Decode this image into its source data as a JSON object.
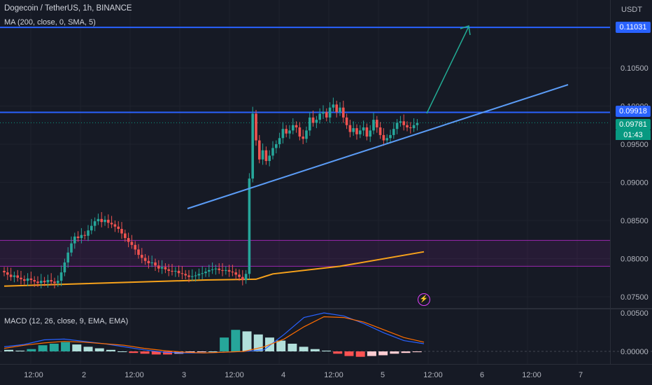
{
  "legend": {
    "title": "Dogecoin / TetherUS, 1h, BINANCE",
    "ma": "MA (200, close, 0, SMA, 5)",
    "macd": "MACD (12, 26, close, 9, EMA, EMA)"
  },
  "axis": {
    "unit": "USDT",
    "price_ticks": [
      "0.10500",
      "0.10000",
      "0.09500",
      "0.09000",
      "0.08500",
      "0.08000",
      "0.07500"
    ],
    "macd_ticks": [
      "0.00500",
      "0.00000"
    ],
    "time_ticks": [
      "12:00",
      "2",
      "12:00",
      "3",
      "12:00",
      "4",
      "12:00",
      "5",
      "12:00",
      "6",
      "12:00",
      "7"
    ]
  },
  "tags": {
    "target": "0.11031",
    "resistance": "0.09918",
    "last": "0.09781",
    "countdown": "01:43"
  },
  "icons": {
    "alert": "lightning-icon"
  },
  "colors": {
    "bg": "#161a25",
    "up": "#26a69a",
    "down": "#ef5350",
    "ma": "#f7a21b",
    "level": "#2962ff",
    "trend": "#5b9cf6",
    "arrow": "#22ab94",
    "zone": "#9c27b0",
    "macd": "#2962ff",
    "signal": "#ff6d00"
  },
  "chart_data": {
    "type": "line",
    "symbol": "Dogecoin / TetherUS",
    "interval": "1h",
    "exchange": "BINANCE",
    "price_range": [
      0.074,
      0.111
    ],
    "closes": [
      0.0782,
      0.0779,
      0.0776,
      0.0778,
      0.0775,
      0.0773,
      0.0771,
      0.0774,
      0.0772,
      0.077,
      0.0768,
      0.0771,
      0.0769,
      0.0772,
      0.077,
      0.0768,
      0.0771,
      0.0782,
      0.0795,
      0.0808,
      0.082,
      0.0829,
      0.0827,
      0.0831,
      0.083,
      0.0837,
      0.0843,
      0.0849,
      0.0852,
      0.0848,
      0.0851,
      0.0847,
      0.0845,
      0.0842,
      0.0839,
      0.0833,
      0.0827,
      0.0822,
      0.0818,
      0.0812,
      0.0805,
      0.0801,
      0.0797,
      0.0794,
      0.0795,
      0.0791,
      0.0787,
      0.0789,
      0.0786,
      0.0784,
      0.0783,
      0.0784,
      0.0781,
      0.078,
      0.0778,
      0.0776,
      0.0777,
      0.0778,
      0.078,
      0.0781,
      0.0783,
      0.0785,
      0.0786,
      0.0787,
      0.0785,
      0.0784,
      0.0785,
      0.0783,
      0.0782,
      0.0779,
      0.0776,
      0.0772,
      0.078,
      0.0905,
      0.099,
      0.0955,
      0.093,
      0.0942,
      0.0928,
      0.0935,
      0.0945,
      0.095,
      0.0958,
      0.097,
      0.0964,
      0.0968,
      0.0975,
      0.0972,
      0.096,
      0.0957,
      0.0968,
      0.0985,
      0.0978,
      0.0982,
      0.099,
      0.0992,
      0.0985,
      0.0998,
      0.1002,
      0.0992,
      0.0998,
      0.0985,
      0.0975,
      0.0966,
      0.0971,
      0.0963,
      0.0968,
      0.0972,
      0.096,
      0.0968,
      0.0982,
      0.0972,
      0.0962,
      0.0955,
      0.0958,
      0.0962,
      0.097,
      0.0978,
      0.098,
      0.0975,
      0.0972,
      0.0971,
      0.0975,
      0.0978
    ],
    "ma200_points": [
      [
        0,
        0.0764
      ],
      [
        60,
        0.0772
      ],
      [
        75,
        0.0773
      ],
      [
        80,
        0.078
      ],
      [
        100,
        0.079
      ],
      [
        125,
        0.0809
      ]
    ],
    "levels": {
      "target": 0.11031,
      "resistance": 0.09918,
      "last": 0.09781
    },
    "zone": [
      0.079,
      0.0824
    ],
    "macd": {
      "range": [
        -0.0015,
        0.0055
      ],
      "histogram": [
        0.0002,
        0.0001,
        0.0003,
        0.0008,
        0.001,
        0.0012,
        0.0009,
        0.0006,
        0.0004,
        0.0002,
        0.0,
        -0.0002,
        -0.0003,
        -0.0004,
        -0.0004,
        -0.0003,
        -0.0002,
        -0.0001,
        0.0,
        0.0018,
        0.0028,
        0.0026,
        0.0022,
        0.0018,
        0.0014,
        0.001,
        0.0006,
        0.0003,
        0.0001,
        -0.0003,
        -0.0006,
        -0.0007,
        -0.0006,
        -0.0005,
        -0.0003,
        -0.0002,
        -0.0001
      ],
      "macd_line": [
        0.0006,
        0.0009,
        0.0015,
        0.0016,
        0.0013,
        0.001,
        0.0006,
        0.0002,
        -0.0001,
        -0.0002,
        -0.0002,
        -0.0001,
        0.0,
        0.0002,
        0.0022,
        0.0044,
        0.005,
        0.0046,
        0.0036,
        0.0024,
        0.0014,
        0.001
      ],
      "signal_line": [
        0.0004,
        0.0008,
        0.0011,
        0.0013,
        0.0012,
        0.001,
        0.0008,
        0.0004,
        0.0001,
        -0.0001,
        -0.0002,
        -0.0001,
        0.0,
        0.0006,
        0.0016,
        0.0032,
        0.0045,
        0.0044,
        0.0038,
        0.0028,
        0.0018,
        0.0012
      ]
    }
  }
}
